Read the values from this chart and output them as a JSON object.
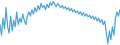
{
  "values": [
    -1.0,
    -3.5,
    0.5,
    -2.0,
    3.0,
    -1.5,
    -3.0,
    1.0,
    -2.5,
    0.0,
    -1.5,
    2.0,
    -1.0,
    0.5,
    -0.5,
    1.5,
    0.0,
    -1.0,
    1.0,
    2.0,
    1.0,
    2.5,
    1.5,
    3.0,
    2.0,
    3.5,
    2.5,
    4.0,
    3.0,
    3.5,
    2.5,
    3.8,
    3.0,
    4.2,
    3.5,
    4.5,
    3.8,
    3.2,
    4.0,
    3.5,
    3.0,
    3.5,
    2.8,
    3.2,
    2.5,
    3.0,
    2.2,
    2.8,
    2.0,
    2.5,
    1.8,
    2.2,
    1.5,
    2.0,
    1.2,
    1.8,
    1.0,
    1.5,
    0.8,
    1.2,
    0.5,
    1.0,
    0.2,
    0.8,
    -0.2,
    0.5,
    -0.5,
    0.2,
    -1.0,
    -0.2,
    -3.0,
    -5.5,
    -2.5,
    -4.5,
    -1.5,
    -3.5,
    0.5,
    2.0,
    1.0,
    2.5
  ],
  "line_color": "#4da6d8",
  "background_color": "#ffffff",
  "linewidth": 0.9
}
